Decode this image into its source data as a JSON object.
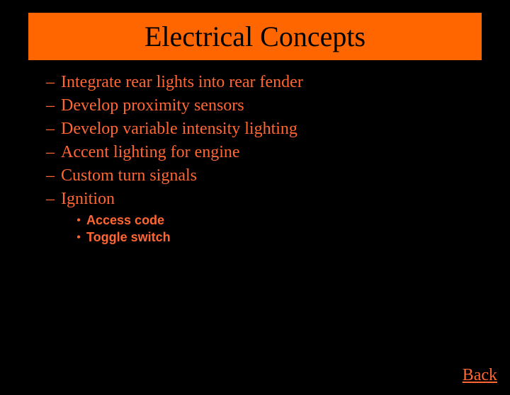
{
  "title": "Electrical Concepts",
  "colors": {
    "background": "#000000",
    "title_bg": "#ff6600",
    "title_text": "#000000",
    "body_text": "#ff6633"
  },
  "bullets": [
    {
      "marker": "–",
      "text": "Integrate rear lights into rear fender"
    },
    {
      "marker": "–",
      "text": "Develop proximity sensors"
    },
    {
      "marker": "–",
      "text": "Develop variable intensity lighting"
    },
    {
      "marker": "–",
      "text": "Accent lighting for engine"
    },
    {
      "marker": "–",
      "text": "Custom turn signals"
    },
    {
      "marker": "–",
      "text": "Ignition"
    }
  ],
  "sub_bullets": [
    {
      "marker": "•",
      "text": "Access code"
    },
    {
      "marker": "•",
      "text": "Toggle switch"
    }
  ],
  "back_link": "Back",
  "typography": {
    "title_fontsize": 40,
    "bullet_fontsize": 24,
    "sub_bullet_fontsize": 18,
    "back_fontsize": 24
  }
}
